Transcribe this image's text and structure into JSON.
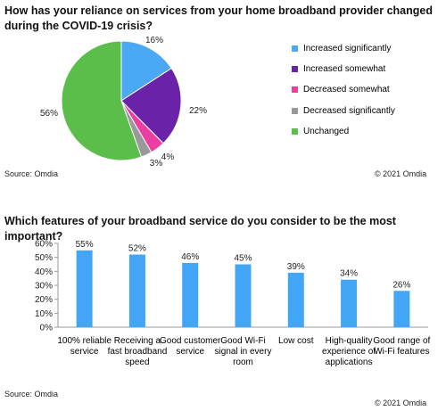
{
  "source_label": "Source: Omdia",
  "copyright": "© 2021 Omdia",
  "chart_data": [
    {
      "type": "pie",
      "title": "How has your reliance on services from your home broadband provider changed during the COVID-19 crisis?",
      "slices": [
        {
          "name": "Increased significantly",
          "value": 16,
          "label": "16%",
          "color": "#4aa8f4"
        },
        {
          "name": "Increased somewhat",
          "value": 22,
          "label": "22%",
          "color": "#6a23a8"
        },
        {
          "name": "Decreased somewhat",
          "value": 4,
          "label": "4%",
          "color": "#ea3fa0"
        },
        {
          "name": "Decreased significantly",
          "value": 3,
          "label": "3%",
          "color": "#999999"
        },
        {
          "name": "Unchanged",
          "value": 56,
          "label": "56%",
          "color": "#5bbd4a"
        }
      ],
      "legend": "right"
    },
    {
      "type": "bar",
      "title": "Which features of your broadband service do you consider to be the most important?",
      "categories": [
        "100% reliable service",
        "Receiving a fast broadband speed",
        "Good customer service",
        "Good Wi-Fi signal in every room",
        "Low cost",
        "High-quality experience of applications",
        "Good range of Wi-Fi features"
      ],
      "values": [
        55,
        52,
        46,
        45,
        39,
        34,
        26
      ],
      "labels": [
        "55%",
        "52%",
        "46%",
        "45%",
        "39%",
        "34%",
        "26%"
      ],
      "ylim": [
        0,
        60
      ],
      "yticks": [
        "0%",
        "10%",
        "20%",
        "30%",
        "40%",
        "50%",
        "60%"
      ],
      "color": "#42a5f5",
      "grid": false
    }
  ]
}
